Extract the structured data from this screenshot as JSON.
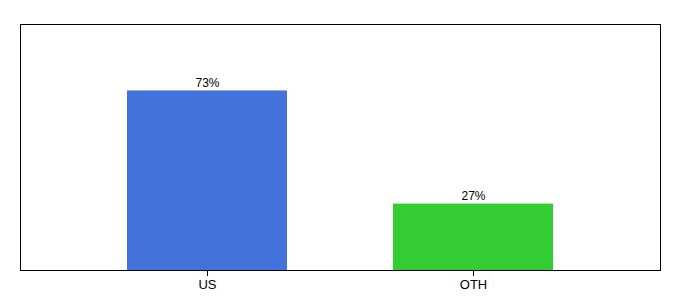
{
  "chart_data": {
    "type": "bar",
    "categories": [
      "US",
      "OTH"
    ],
    "values": [
      73,
      27
    ],
    "value_labels": [
      "73%",
      "27%"
    ],
    "colors": [
      "#4472db",
      "#33cc33"
    ],
    "ylim": [
      0,
      100
    ],
    "data_labels": true,
    "tick_labels": "x",
    "grid": false
  }
}
